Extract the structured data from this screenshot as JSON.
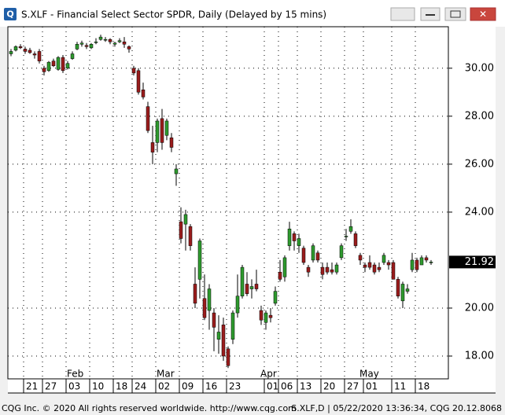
{
  "window": {
    "title": "S.XLF - Financial Select Sector SPDR, Daily (Delayed by 15 mins)",
    "icon": "Q",
    "footer_left": "CQG Inc. © 2020 All rights reserved worldwide. http://www.cqg.com",
    "footer_right": "S.XLF,D | 05/22/2020 13:36:34, CQG 20.12.8068"
  },
  "chart_data": {
    "type": "candlestick",
    "up_color": "#2e9a2e",
    "down_color": "#9a1c1c",
    "categories": [
      null,
      null,
      null,
      "21",
      null,
      null,
      null,
      "27",
      null,
      null,
      null,
      null,
      "03",
      null,
      null,
      null,
      null,
      "10",
      null,
      null,
      null,
      null,
      "18",
      null,
      null,
      null,
      "24",
      null,
      null,
      null,
      null,
      "02",
      null,
      null,
      null,
      null,
      "09",
      null,
      null,
      null,
      null,
      "16",
      null,
      null,
      null,
      null,
      "23",
      null,
      null,
      null,
      null,
      null,
      null,
      null,
      "01",
      null,
      null,
      "06",
      null,
      null,
      null,
      "13",
      null,
      null,
      null,
      null,
      "20",
      null,
      null,
      null,
      null,
      "27",
      null,
      null,
      null,
      "01",
      null,
      null,
      null,
      null,
      null,
      "11",
      null,
      null,
      null,
      null,
      "18",
      null,
      null,
      null,
      null
    ],
    "months": [
      null,
      null,
      null,
      null,
      null,
      null,
      null,
      null,
      null,
      null,
      null,
      null,
      "Feb",
      null,
      null,
      null,
      null,
      null,
      null,
      null,
      null,
      null,
      null,
      null,
      null,
      null,
      null,
      null,
      null,
      null,
      null,
      "Mar",
      null,
      null,
      null,
      null,
      null,
      null,
      null,
      null,
      null,
      null,
      null,
      null,
      null,
      null,
      null,
      null,
      null,
      null,
      null,
      null,
      null,
      "Apr",
      null,
      null,
      null,
      null,
      null,
      null,
      null,
      null,
      null,
      null,
      null,
      null,
      null,
      null,
      null,
      null,
      null,
      null,
      null,
      null,
      "May",
      null,
      null,
      null,
      null,
      null,
      null,
      null,
      null,
      null,
      null,
      null,
      null,
      null,
      null,
      null
    ],
    "open": [
      30.6,
      30.75,
      30.9,
      30.8,
      30.75,
      30.6,
      30.7,
      30.0,
      29.9,
      30.3,
      29.95,
      30.45,
      30.0,
      30.4,
      30.8,
      31.0,
      30.95,
      30.85,
      31.1,
      31.2,
      31.2,
      31.2,
      31.0,
      31.1,
      31.1,
      30.9,
      30.0,
      29.9,
      29.1,
      28.4,
      26.9,
      26.9,
      27.9,
      27.2,
      27.1,
      25.6,
      23.6,
      23.5,
      23.4,
      21.0,
      21.2,
      20.4,
      19.9,
      19.8,
      18.7,
      19.3,
      18.3,
      18.7,
      19.8,
      20.5,
      21.0,
      20.8,
      21.0,
      19.9,
      19.4,
      19.7,
      20.2,
      21.5,
      21.3,
      22.6,
      23.1,
      22.6,
      22.5,
      21.7,
      22.0,
      22.3,
      21.7,
      21.7,
      21.6,
      21.5,
      22.1,
      23.0,
      23.2,
      23.1,
      22.2,
      21.8,
      21.9,
      21.8,
      21.7,
      21.9,
      21.9,
      21.9,
      21.2,
      20.3,
      20.7,
      21.6,
      22.0,
      21.8,
      22.1,
      21.9
    ],
    "high": [
      30.8,
      30.95,
      31.0,
      30.9,
      30.85,
      30.7,
      30.8,
      30.1,
      30.3,
      30.4,
      30.5,
      30.55,
      30.3,
      30.7,
      31.1,
      31.15,
      31.05,
      31.05,
      31.25,
      31.4,
      31.3,
      31.25,
      31.1,
      31.25,
      31.3,
      30.95,
      30.1,
      30.0,
      29.4,
      28.6,
      27.6,
      27.9,
      28.3,
      27.9,
      27.3,
      26.0,
      24.2,
      24.1,
      23.5,
      21.7,
      22.9,
      21.4,
      21.0,
      20.0,
      19.7,
      19.6,
      18.4,
      19.9,
      21.4,
      21.8,
      21.5,
      21.2,
      21.6,
      20.1,
      19.9,
      20.0,
      20.9,
      22.0,
      22.2,
      23.6,
      23.2,
      23.1,
      22.6,
      21.8,
      22.7,
      22.4,
      21.9,
      21.9,
      21.9,
      21.9,
      22.7,
      23.3,
      23.7,
      23.2,
      22.3,
      21.9,
      22.2,
      21.9,
      21.9,
      22.3,
      22.0,
      22.0,
      21.3,
      21.1,
      21.0,
      22.3,
      22.1,
      22.2,
      22.2,
      22.0
    ],
    "low": [
      30.5,
      30.7,
      30.8,
      30.6,
      30.6,
      30.4,
      30.2,
      29.7,
      29.85,
      30.05,
      29.9,
      29.8,
      29.95,
      30.35,
      30.75,
      30.9,
      30.8,
      30.8,
      31.0,
      31.15,
      31.1,
      31.0,
      30.9,
      31.05,
      30.85,
      30.65,
      29.7,
      28.9,
      28.7,
      27.3,
      26.0,
      26.5,
      26.6,
      27.0,
      26.5,
      25.1,
      22.7,
      22.4,
      22.4,
      20.0,
      20.4,
      19.5,
      19.1,
      18.2,
      18.1,
      17.8,
      17.5,
      18.5,
      19.6,
      20.4,
      20.5,
      20.4,
      20.7,
      19.3,
      19.1,
      19.4,
      20.1,
      21.1,
      21.1,
      22.4,
      22.4,
      22.3,
      21.8,
      21.3,
      21.9,
      21.9,
      21.2,
      21.4,
      21.4,
      21.4,
      22.0,
      22.8,
      23.1,
      22.5,
      21.8,
      21.5,
      21.6,
      21.4,
      21.5,
      21.8,
      21.6,
      21.2,
      20.4,
      20.0,
      20.6,
      21.5,
      21.5,
      21.8,
      21.9,
      21.8
    ],
    "close": [
      30.7,
      30.9,
      30.85,
      30.7,
      30.65,
      30.55,
      30.3,
      29.85,
      30.25,
      30.1,
      30.45,
      29.9,
      30.2,
      30.6,
      31.0,
      31.05,
      30.9,
      31.0,
      31.1,
      31.3,
      31.2,
      31.1,
      31.05,
      31.15,
      31.0,
      30.8,
      29.8,
      29.0,
      28.8,
      27.4,
      26.5,
      27.8,
      26.9,
      27.8,
      26.7,
      25.8,
      22.9,
      23.9,
      22.6,
      20.2,
      22.8,
      19.6,
      20.8,
      19.2,
      19.0,
      18.0,
      17.6,
      19.8,
      20.5,
      21.7,
      20.6,
      20.9,
      20.8,
      19.5,
      19.8,
      19.6,
      20.7,
      21.2,
      22.1,
      23.3,
      22.8,
      22.9,
      21.9,
      21.5,
      22.6,
      22.0,
      21.4,
      21.5,
      21.5,
      21.8,
      22.6,
      23.0,
      23.4,
      22.6,
      22.0,
      21.7,
      21.7,
      21.5,
      21.6,
      22.2,
      21.8,
      21.2,
      20.5,
      21.0,
      20.8,
      22.0,
      21.6,
      22.1,
      22.0,
      21.92
    ],
    "ylim": [
      17.05,
      31.73
    ],
    "yticks": [
      {
        "value": 18,
        "label": "18.00"
      },
      {
        "value": 20,
        "label": "20.00"
      },
      {
        "value": 24,
        "label": "24.00"
      },
      {
        "value": 26,
        "label": "26.00"
      },
      {
        "value": 28,
        "label": "28.00"
      },
      {
        "value": 30,
        "label": "30.00"
      }
    ],
    "grid": true
  }
}
